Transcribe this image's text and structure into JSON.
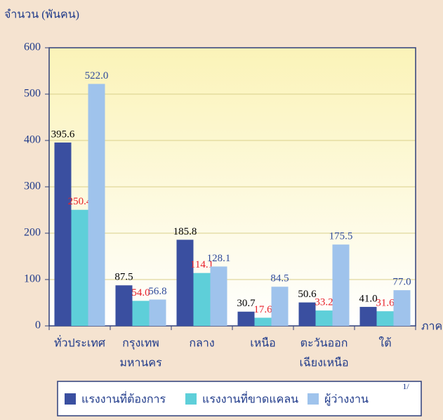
{
  "chart_data": {
    "type": "bar",
    "y_label": "จำนวน (พันคน)",
    "x_label": "ภาค",
    "categories": [
      [
        "ทั่วประเทศ"
      ],
      [
        "กรุงเทพ",
        "มหานคร"
      ],
      [
        "กลาง"
      ],
      [
        "เหนือ"
      ],
      [
        "ตะวันออก",
        "เฉียงเหนือ"
      ],
      [
        "ใต้"
      ]
    ],
    "series": [
      {
        "name": "แรงงานที่ต้องการ",
        "color": "#3a4fa0",
        "label_color": "#000000",
        "values": [
          395.6,
          87.5,
          185.8,
          30.7,
          50.6,
          41.0
        ],
        "value_labels": [
          "395.6",
          "87.5",
          "185.8",
          "30.7",
          "50.6",
          "41.0"
        ]
      },
      {
        "name": "แรงงานที่ขาดแคลน",
        "color": "#5ecfd9",
        "label_color": "#e8202a",
        "values": [
          250.4,
          54.0,
          114.1,
          17.6,
          33.2,
          31.6
        ],
        "value_labels": [
          "250.4",
          "54.0",
          "114.1",
          "17.6",
          "33.2",
          "31.6"
        ]
      },
      {
        "name": "ผู้ว่างงาน",
        "color": "#9fc3ec",
        "label_color": "#2e4a9a",
        "values": [
          522.0,
          56.8,
          128.1,
          84.5,
          175.5,
          77.0
        ],
        "value_labels": [
          "522.0",
          "56.8",
          "128.1",
          "84.5",
          "175.5",
          "77.0"
        ]
      }
    ],
    "legend_note": "1/",
    "ylim": [
      0,
      600
    ],
    "yticks": [
      0,
      100,
      200,
      300,
      400,
      500,
      600
    ],
    "grid": true
  }
}
